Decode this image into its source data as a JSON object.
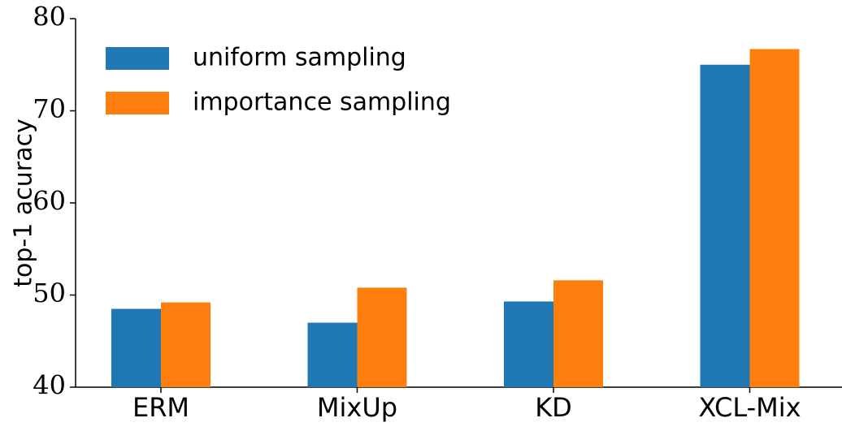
{
  "chart_data": {
    "type": "bar",
    "categories": [
      "ERM",
      "MixUp",
      "KD",
      "XCL-Mix"
    ],
    "y_label": "top-1 acuracy",
    "series": [
      {
        "name": "uniform sampling",
        "color": "#1f77b4",
        "values": [
          48.5,
          47.0,
          49.3,
          75.0
        ]
      },
      {
        "name": "importance sampling",
        "color": "#ff7f0e",
        "values": [
          49.2,
          50.8,
          51.6,
          76.7
        ]
      }
    ],
    "ylim": [
      40,
      80
    ],
    "yticks": [
      40,
      50,
      60,
      70,
      80
    ],
    "legend": "upper left"
  }
}
